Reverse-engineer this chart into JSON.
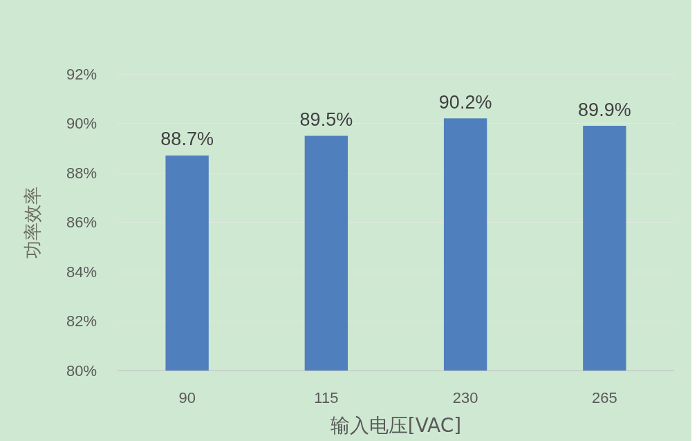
{
  "chart_data": {
    "type": "bar",
    "xlabel": "输入电压[VAC]",
    "ylabel": "功率效率",
    "categories": [
      "90",
      "115",
      "230",
      "265"
    ],
    "values": [
      88.7,
      89.5,
      90.2,
      89.9
    ],
    "value_labels": [
      "88.7%",
      "89.5%",
      "90.2%",
      "89.9%"
    ],
    "color": "#4f7fbc",
    "ylim": [
      80,
      92
    ],
    "yticks": [
      {
        "value": 80,
        "label": "80%"
      },
      {
        "value": 82,
        "label": "82%"
      },
      {
        "value": 84,
        "label": "84%"
      },
      {
        "value": 86,
        "label": "86%"
      },
      {
        "value": 88,
        "label": "88%"
      },
      {
        "value": 90,
        "label": "90%"
      },
      {
        "value": 92,
        "label": "92%"
      }
    ],
    "grid": "y"
  }
}
